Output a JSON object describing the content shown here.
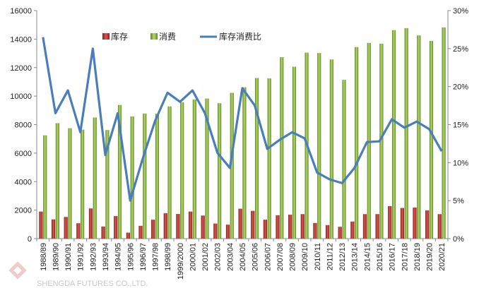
{
  "chart_data": {
    "type": "bar",
    "categories": [
      "1988/89",
      "1989/90",
      "1990/91",
      "1991/92",
      "1992/93",
      "1993/94",
      "1994/95",
      "1995/96",
      "1996/97",
      "1997/98",
      "1998/99",
      "1999/2000",
      "2000/01",
      "2001/02",
      "2002/03",
      "2003/04",
      "2004/05",
      "2005/06",
      "2006/07",
      "2007/08",
      "2008/09",
      "2009/10",
      "2010/11",
      "2011/12",
      "2012/13",
      "2013/14",
      "2014/15",
      "2015/16",
      "2016/17",
      "2017/18",
      "2018/19",
      "2019/20",
      "2020/21"
    ],
    "series": [
      {
        "name": "库存",
        "type": "bar",
        "axis": "left",
        "color": "#c0392b",
        "values": [
          1900,
          1350,
          1520,
          1080,
          2120,
          850,
          1580,
          420,
          900,
          1330,
          1780,
          1730,
          1900,
          1620,
          1060,
          980,
          2100,
          1950,
          1330,
          1640,
          1680,
          1720,
          1100,
          950,
          830,
          1200,
          1720,
          1720,
          2280,
          2150,
          2180,
          1980,
          1720
        ]
      },
      {
        "name": "消费",
        "type": "bar",
        "axis": "left",
        "color": "#8cb83e",
        "values": [
          7250,
          8100,
          7750,
          7650,
          8500,
          7620,
          9380,
          8570,
          8780,
          8760,
          9280,
          9570,
          9770,
          9830,
          9500,
          10230,
          10620,
          11270,
          11240,
          12730,
          12060,
          13050,
          13020,
          12570,
          11140,
          13440,
          13730,
          13680,
          14630,
          14770,
          14260,
          13870,
          14820
        ]
      },
      {
        "name": "库存消费比",
        "type": "line",
        "axis": "right",
        "color": "#4a7ebb",
        "values": [
          26.5,
          16.5,
          19.5,
          14.0,
          25.0,
          11.0,
          16.5,
          5.0,
          10.5,
          15.5,
          19.2,
          18.0,
          19.5,
          16.5,
          11.3,
          9.3,
          19.8,
          17.5,
          11.8,
          13.0,
          14.0,
          13.2,
          8.7,
          7.8,
          7.3,
          9.3,
          12.7,
          12.8,
          15.7,
          14.6,
          15.4,
          14.4,
          11.5
        ]
      }
    ],
    "title": "",
    "xlabel": "",
    "ylabel": "",
    "y_left_ticks": [
      "0",
      "2000",
      "4000",
      "6000",
      "8000",
      "10000",
      "12000",
      "14000",
      "16000"
    ],
    "y_right_ticks": [
      "0%",
      "5%",
      "10%",
      "15%",
      "20%",
      "25%",
      "30%"
    ],
    "ylim_left": [
      0,
      16000
    ],
    "ylim_right": [
      0,
      30
    ],
    "grid": false,
    "legend_position": "top-left",
    "watermark": "SHENGDA FUTURES CO.,LTD."
  }
}
